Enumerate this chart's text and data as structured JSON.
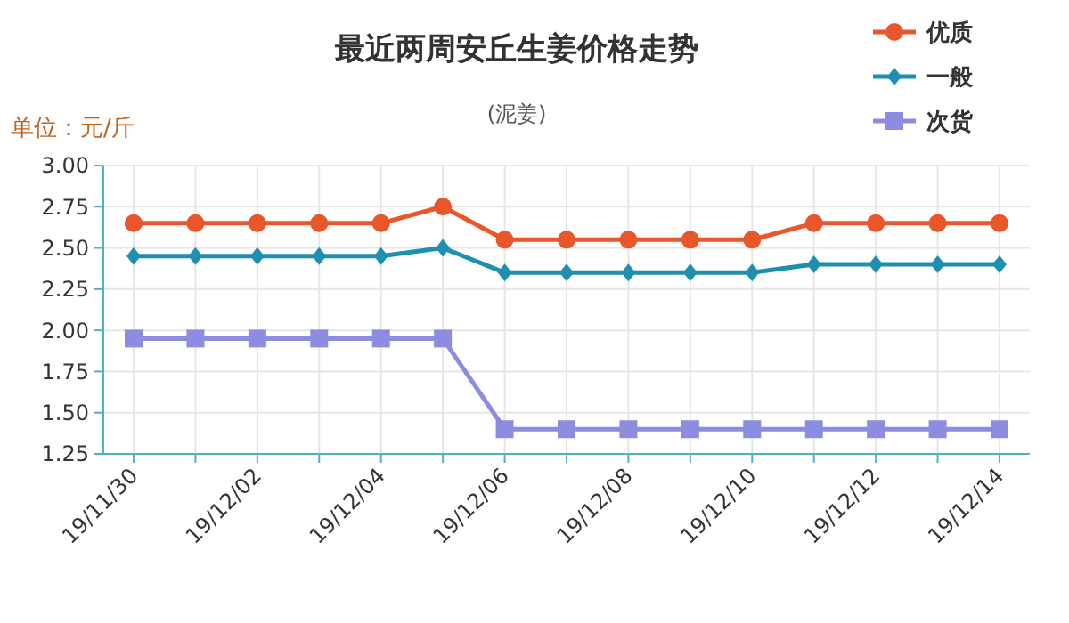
{
  "chart_data": {
    "type": "line",
    "title": "最近两周安丘生姜价格走势",
    "subtitle": "(泥姜)",
    "ylabel": "单位：元/斤",
    "categories": [
      "19/11/30",
      null,
      "19/12/02",
      null,
      "19/12/04",
      null,
      "19/12/06",
      null,
      "19/12/08",
      null,
      "19/12/10",
      null,
      "19/12/12",
      null,
      "19/12/14"
    ],
    "series": [
      {
        "name": "优质",
        "color": "#e8562a",
        "marker": "circle",
        "values": [
          2.65,
          2.65,
          2.65,
          2.65,
          2.65,
          2.75,
          2.55,
          2.55,
          2.55,
          2.55,
          2.55,
          2.65,
          2.65,
          2.65,
          2.65
        ]
      },
      {
        "name": "一般",
        "color": "#1f8fb0",
        "marker": "diamond",
        "values": [
          2.45,
          2.45,
          2.45,
          2.45,
          2.45,
          2.5,
          2.35,
          2.35,
          2.35,
          2.35,
          2.35,
          2.4,
          2.4,
          2.4,
          2.4
        ]
      },
      {
        "name": "次货",
        "color": "#8c8ce0",
        "marker": "square",
        "values": [
          1.95,
          1.95,
          1.95,
          1.95,
          1.95,
          1.95,
          1.4,
          1.4,
          1.4,
          1.4,
          1.4,
          1.4,
          1.4,
          1.4,
          1.4
        ]
      }
    ],
    "ylim": [
      1.25,
      3
    ],
    "yticks": [
      {
        "value": 1.25,
        "label": "1.25"
      },
      {
        "value": 1.5,
        "label": "1.50"
      },
      {
        "value": 1.75,
        "label": "1.75"
      },
      {
        "value": 2,
        "label": "2.00"
      },
      {
        "value": 2.25,
        "label": "2.25"
      },
      {
        "value": 2.5,
        "label": "2.50"
      },
      {
        "value": 2.75,
        "label": "2.75"
      },
      {
        "value": 3,
        "label": "3.00"
      }
    ],
    "grid": true,
    "legend": "top right",
    "line_style": "solid"
  }
}
